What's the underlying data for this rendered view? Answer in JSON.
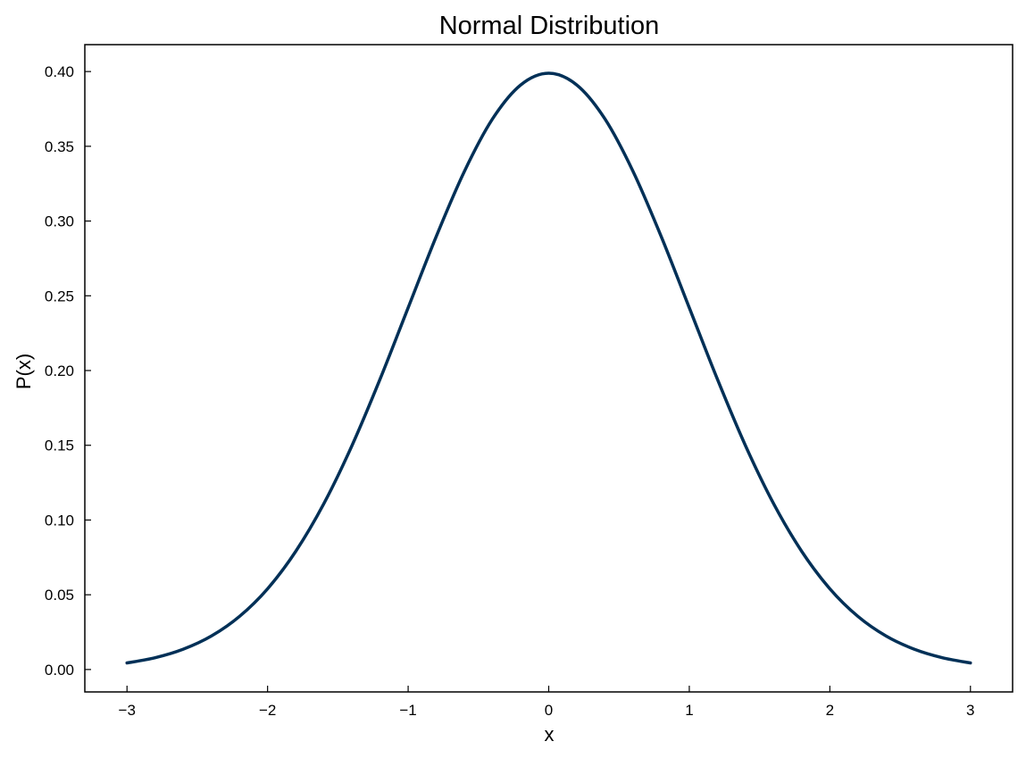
{
  "chart_data": {
    "type": "line",
    "title": "Normal Distribution",
    "xlabel": "x",
    "ylabel": "P(x)",
    "xlim": [
      -3.3,
      3.3
    ],
    "ylim": [
      -0.015,
      0.418
    ],
    "x_ticks": [
      -3,
      -2,
      -1,
      0,
      1,
      2,
      3
    ],
    "x_tick_labels": [
      "−3",
      "−2",
      "−1",
      "0",
      "1",
      "2",
      "3"
    ],
    "y_ticks": [
      0.0,
      0.05,
      0.1,
      0.15,
      0.2,
      0.25,
      0.3,
      0.35,
      0.4
    ],
    "y_tick_labels": [
      "0.00",
      "0.05",
      "0.10",
      "0.15",
      "0.20",
      "0.25",
      "0.30",
      "0.35",
      "0.40"
    ],
    "grid": false,
    "line_color": "#003057",
    "series": [
      {
        "x": [
          -3.0,
          -2.8,
          -2.6,
          -2.4,
          -2.2,
          -2.0,
          -1.8,
          -1.6,
          -1.4,
          -1.2,
          -1.0,
          -0.8,
          -0.6,
          -0.4,
          -0.2,
          0.0,
          0.2,
          0.4,
          0.6,
          0.8,
          1.0,
          1.2,
          1.4,
          1.6,
          1.8,
          2.0,
          2.2,
          2.4,
          2.6,
          2.8,
          3.0
        ],
        "values": [
          0.0044,
          0.0079,
          0.0136,
          0.0224,
          0.0355,
          0.054,
          0.079,
          0.1109,
          0.1497,
          0.1942,
          0.242,
          0.2897,
          0.3332,
          0.3683,
          0.391,
          0.3989,
          0.391,
          0.3683,
          0.3332,
          0.2897,
          0.242,
          0.1942,
          0.1497,
          0.1109,
          0.079,
          0.054,
          0.0355,
          0.0224,
          0.0136,
          0.0079,
          0.0044
        ]
      }
    ]
  }
}
